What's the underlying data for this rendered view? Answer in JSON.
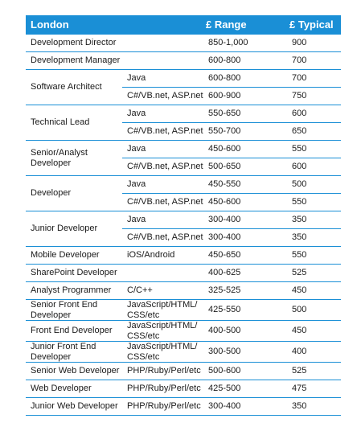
{
  "header": {
    "col1": "London",
    "col2": "£ Range",
    "col3": "£ Typical"
  },
  "rows": [
    {
      "role": "Development Director",
      "subs": [
        {
          "tech": "",
          "range": "850-1,000",
          "typical": "900"
        }
      ]
    },
    {
      "role": "Development Manager",
      "subs": [
        {
          "tech": "",
          "range": "600-800",
          "typical": "700"
        }
      ]
    },
    {
      "role": "Software Architect",
      "subs": [
        {
          "tech": "Java",
          "range": "600-800",
          "typical": "700"
        },
        {
          "tech": "C#/VB.net, ASP.net",
          "range": "600-900",
          "typical": "750"
        }
      ]
    },
    {
      "role": "Technical Lead",
      "subs": [
        {
          "tech": "Java",
          "range": "550-650",
          "typical": "600"
        },
        {
          "tech": "C#/VB.net, ASP.net",
          "range": "550-700",
          "typical": "650"
        }
      ]
    },
    {
      "role": "Senior/Analyst\nDeveloper",
      "subs": [
        {
          "tech": "Java",
          "range": "450-600",
          "typical": "550"
        },
        {
          "tech": "C#/VB.net, ASP.net",
          "range": "500-650",
          "typical": "600"
        }
      ]
    },
    {
      "role": "Developer",
      "subs": [
        {
          "tech": "Java",
          "range": "450-550",
          "typical": "500"
        },
        {
          "tech": "C#/VB.net, ASP.net",
          "range": "450-600",
          "typical": "550"
        }
      ]
    },
    {
      "role": "Junior Developer",
      "subs": [
        {
          "tech": "Java",
          "range": "300-400",
          "typical": "350"
        },
        {
          "tech": "C#/VB.net, ASP.net",
          "range": "300-400",
          "typical": "350"
        }
      ]
    },
    {
      "role": "Mobile Developer",
      "subs": [
        {
          "tech": "iOS/Android",
          "range": "450-650",
          "typical": "550"
        }
      ]
    },
    {
      "role": "SharePoint Developer",
      "subs": [
        {
          "tech": "",
          "range": "400-625",
          "typical": "525"
        }
      ]
    },
    {
      "role": "Analyst Programmer",
      "subs": [
        {
          "tech": "C/C++",
          "range": "325-525",
          "typical": "450"
        }
      ]
    },
    {
      "role": "Senior Front End\nDeveloper",
      "subs": [
        {
          "tech": "JavaScript/HTML/\nCSS/etc",
          "range": "425-550",
          "typical": "500"
        }
      ]
    },
    {
      "role": "Front End Developer",
      "subs": [
        {
          "tech": "JavaScript/HTML/\nCSS/etc",
          "range": "400-500",
          "typical": "450"
        }
      ]
    },
    {
      "role": "Junior Front End\nDeveloper",
      "subs": [
        {
          "tech": "JavaScript/HTML/\nCSS/etc",
          "range": "300-500",
          "typical": "400"
        }
      ]
    },
    {
      "role": "Senior Web Developer",
      "subs": [
        {
          "tech": "PHP/Ruby/Perl/etc",
          "range": "500-600",
          "typical": "525"
        }
      ]
    },
    {
      "role": "Web Developer",
      "subs": [
        {
          "tech": "PHP/Ruby/Perl/etc",
          "range": "425-500",
          "typical": "475"
        }
      ]
    },
    {
      "role": "Junior Web Developer",
      "subs": [
        {
          "tech": "PHP/Ruby/Perl/etc",
          "range": "300-400",
          "typical": "350"
        }
      ]
    }
  ]
}
